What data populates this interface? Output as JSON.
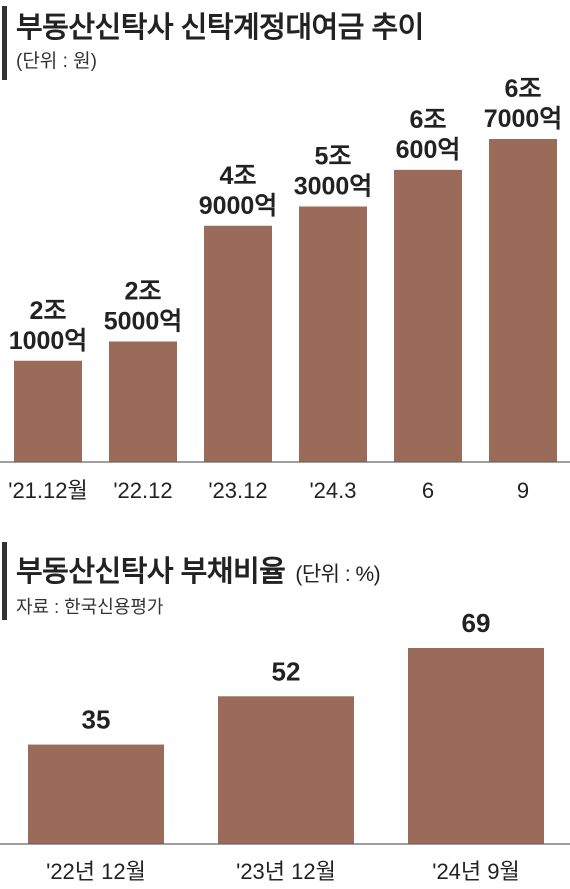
{
  "charts": [
    {
      "title": "부동산신탁사 신탁계정대여금 추이",
      "unit": "(단위 : 원)",
      "bar_color": "#9a6b58",
      "chart_data": {
        "type": "bar",
        "title": "부동산신탁사 신탁계정대여금 추이",
        "ylabel": "",
        "xlabel": "",
        "categories": [
          "'21.12월",
          "'22.12",
          "'23.12",
          "'24.3",
          "6",
          "9"
        ],
        "values": [
          21000,
          25000,
          49000,
          53000,
          60600,
          67000
        ],
        "value_unit": "억원",
        "data_labels": [
          [
            "2조",
            "1000억"
          ],
          [
            "2조",
            "5000억"
          ],
          [
            "4조",
            "9000억"
          ],
          [
            "5조",
            "3000억"
          ],
          [
            "6조",
            "600억"
          ],
          [
            "6조",
            "7000억"
          ]
        ]
      }
    },
    {
      "title": "부동산신탁사 부채비율",
      "unit": "(단위 : %)",
      "source": "자료 : 한국신용평가",
      "bar_color": "#9a6b58",
      "chart_data": {
        "type": "bar",
        "title": "부동산신탁사 부채비율",
        "ylabel": "",
        "xlabel": "",
        "categories": [
          "'22년 12월",
          "'23년 12월",
          "'24년 9월"
        ],
        "values": [
          35,
          52,
          69
        ],
        "data_labels": [
          [
            "35"
          ],
          [
            "52"
          ],
          [
            "69"
          ]
        ]
      }
    }
  ]
}
